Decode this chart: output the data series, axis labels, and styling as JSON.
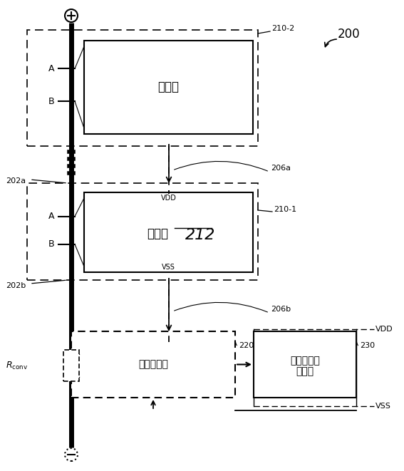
{
  "text_monitor1": "監視器",
  "text_monitor2": "監視器",
  "text_monitor2_num": "212",
  "text_current": "電流監視器",
  "text_battery_line1": "電池パック",
  "text_battery_line2": "制御器",
  "label_210_2": "210-2",
  "label_210_1": "210-1",
  "label_206a": "206a",
  "label_206b": "206b",
  "label_202a": "202a",
  "label_202b": "202b",
  "label_220": "220",
  "label_230": "230",
  "label_200": "200",
  "label_VDD": "VDD",
  "label_VSS": "VSS",
  "label_VDD_box": "VDD",
  "label_VSS_box": "VSS",
  "label_A": "A",
  "label_B": "B"
}
